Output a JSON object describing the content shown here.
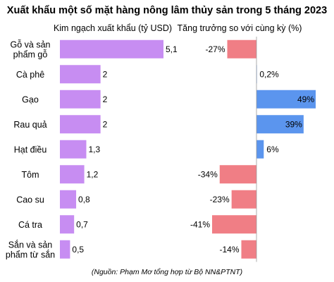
{
  "chart_data": {
    "type": "bar",
    "title": "Xuất khẩu một số mặt hàng nông lâm thủy sản trong 5 tháng 2023",
    "source": "(Nguồn: Phạm Mơ tổng hợp từ Bộ NN&PTNT)",
    "categories": [
      [
        "Gỗ và sản",
        "phẩm gỗ"
      ],
      [
        "Cà phê"
      ],
      [
        "Gạo"
      ],
      [
        "Rau quả"
      ],
      [
        "Hạt điều"
      ],
      [
        "Tôm"
      ],
      [
        "Cao su"
      ],
      [
        "Cá tra"
      ],
      [
        "Sắn và sản",
        "phẩm từ sắn"
      ]
    ],
    "panels": [
      {
        "subtitle": "Kim ngạch xuất khẩu (tỷ USD)",
        "type": "bar",
        "values": [
          5.1,
          2,
          2,
          2,
          1.3,
          1.2,
          0.8,
          0.7,
          0.5
        ],
        "labels": [
          "5,1",
          "2",
          "2",
          "2",
          "1,3",
          "1,2",
          "0,8",
          "0,7",
          "0,5"
        ],
        "color": "#c78df2",
        "xlim": [
          0,
          5.1
        ]
      },
      {
        "subtitle": "Tăng trưởng so với cùng kỳ (%)",
        "type": "diverging-bar",
        "values": [
          -27,
          0.2,
          49,
          39,
          6,
          -34,
          -23,
          -41,
          -14
        ],
        "labels": [
          "-27%",
          "0,2%",
          "49%",
          "39%",
          "6%",
          "-34%",
          "-23%",
          "-41%",
          "-14%"
        ],
        "positive_color": "#5b95ee",
        "negative_color": "#f07e85",
        "zero_line_color": "#9a9a9a",
        "xlim": [
          -41,
          49
        ]
      }
    ],
    "grid": false,
    "legend": "none"
  }
}
